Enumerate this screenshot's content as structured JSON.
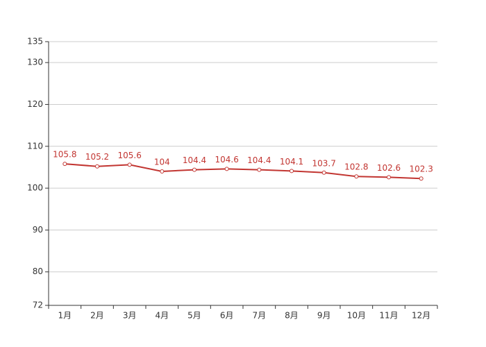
{
  "chart_data": {
    "type": "line",
    "categories": [
      "1月",
      "2月",
      "3月",
      "4月",
      "5月",
      "6月",
      "7月",
      "8月",
      "9月",
      "10月",
      "11月",
      "12月"
    ],
    "series": [
      {
        "color": "#c23531",
        "values": [
          105.8,
          105.2,
          105.6,
          104,
          104.4,
          104.6,
          104.4,
          104.1,
          103.7,
          102.8,
          102.6,
          102.3
        ]
      }
    ],
    "ylim": [
      72,
      135
    ],
    "yticks": [
      72,
      80,
      90,
      100,
      110,
      120,
      130,
      135
    ],
    "grid": true
  }
}
